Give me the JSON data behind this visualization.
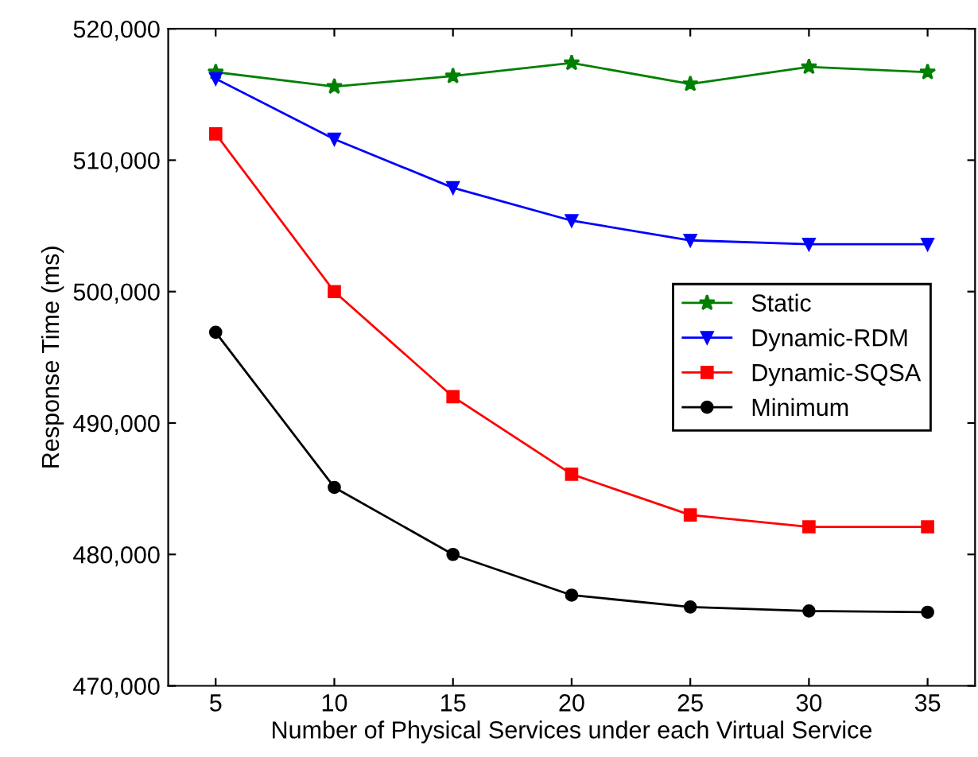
{
  "chart_data": {
    "type": "line",
    "xlabel": "Number of Physical Services under each Virtual Service",
    "ylabel": "Response Time (ms)",
    "x": [
      5,
      10,
      15,
      20,
      25,
      30,
      35
    ],
    "series": [
      {
        "name": "Static",
        "color": "#008000",
        "marker": "star",
        "values": [
          516700,
          515600,
          516400,
          517400,
          515800,
          517100,
          516700
        ]
      },
      {
        "name": "Dynamic-RDM",
        "color": "#0000ff",
        "marker": "triangle",
        "values": [
          516200,
          511600,
          507900,
          505400,
          503900,
          503600,
          503600
        ]
      },
      {
        "name": "Dynamic-SQSA",
        "color": "#ff0000",
        "marker": "square",
        "values": [
          512000,
          500000,
          492000,
          486100,
          483000,
          482100,
          482100
        ]
      },
      {
        "name": "Minimum",
        "color": "#000000",
        "marker": "circle",
        "values": [
          496900,
          485100,
          480000,
          476900,
          476000,
          475700,
          475600
        ]
      }
    ],
    "xlim": [
      3,
      37
    ],
    "xticks": [
      5,
      10,
      15,
      20,
      25,
      30,
      35
    ],
    "ylim": [
      470000,
      520000
    ],
    "yticks": [
      {
        "value": 470000,
        "label": "470,000"
      },
      {
        "value": 480000,
        "label": "480,000"
      },
      {
        "value": 490000,
        "label": "490,000"
      },
      {
        "value": 500000,
        "label": "500,000"
      },
      {
        "value": 510000,
        "label": "510,000"
      },
      {
        "value": 520000,
        "label": "520,000"
      }
    ],
    "legend": "center right",
    "grid": false,
    "line_style": "solid"
  }
}
